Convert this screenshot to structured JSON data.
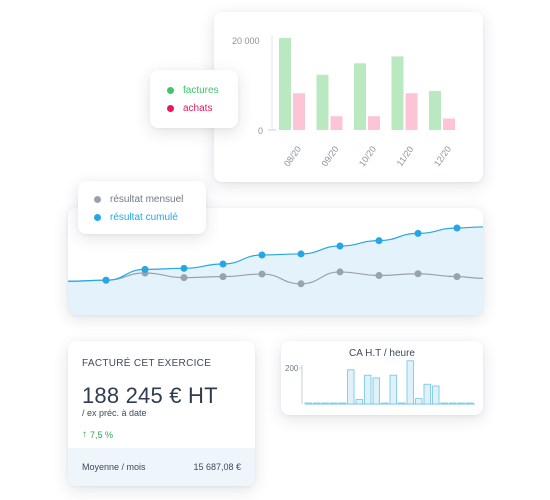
{
  "colors": {
    "factures": "#b9e8c1",
    "factures_dot": "#3cc76a",
    "achats": "#fcc4d4",
    "achats_dot": "#e5175d",
    "resultat_mensuel": "#9aa3ad",
    "resultat_cumule": "#25a7e6",
    "area_fill": "#e3f2fb",
    "hist_bar_fill": "#dff2fa",
    "hist_bar_stroke": "#6fc3e6"
  },
  "legend_bar": {
    "items": [
      {
        "label": "factures",
        "color": "#3cc76a"
      },
      {
        "label": "achats",
        "color": "#e5175d"
      }
    ]
  },
  "legend_line": {
    "items": [
      {
        "label": "résultat mensuel",
        "color": "#9aa3ad"
      },
      {
        "label": "résultat cumulé",
        "color": "#25a7e6"
      }
    ]
  },
  "bar_chart": {
    "y_ticks": [
      "20 000",
      "0"
    ]
  },
  "hist_chart": {
    "title": "CA H.T / heure",
    "y_tick": "200"
  },
  "kpi": {
    "title": "FACTURÉ CET EXERCICE",
    "value": "188 245 € HT",
    "subtitle": "/ ex préc. à date",
    "trend_arrow": "↑",
    "trend_value": "7,5 %",
    "footer_label": "Moyenne / mois",
    "footer_value": "15 687,08 €"
  },
  "chart_data": [
    {
      "type": "bar",
      "categories": [
        "08/20",
        "09/20",
        "10/20",
        "11/20",
        "12/20"
      ],
      "series": [
        {
          "name": "factures",
          "values": [
            20000,
            12000,
            14500,
            16000,
            8500
          ]
        },
        {
          "name": "achats",
          "values": [
            8000,
            3000,
            3000,
            8000,
            2500
          ]
        }
      ],
      "ylim": [
        0,
        22000
      ]
    },
    {
      "type": "line",
      "series": [
        {
          "name": "résultat mensuel",
          "values": [
            0.5,
            2.5,
            1.2,
            1.5,
            2.2,
            -0.5,
            2.8,
            1.8,
            2.3,
            1.5
          ]
        },
        {
          "name": "résultat cumulé",
          "values": [
            0.5,
            3.5,
            3.8,
            5.0,
            7.5,
            7.8,
            10.0,
            11.5,
            13.5,
            15.0
          ]
        }
      ]
    },
    {
      "type": "bar",
      "title": "CA H.T / heure",
      "values": [
        3,
        3,
        3,
        3,
        3,
        190,
        25,
        160,
        145,
        3,
        160,
        3,
        240,
        30,
        110,
        100,
        3,
        3,
        3,
        3
      ],
      "ylim": [
        0,
        260
      ]
    }
  ]
}
